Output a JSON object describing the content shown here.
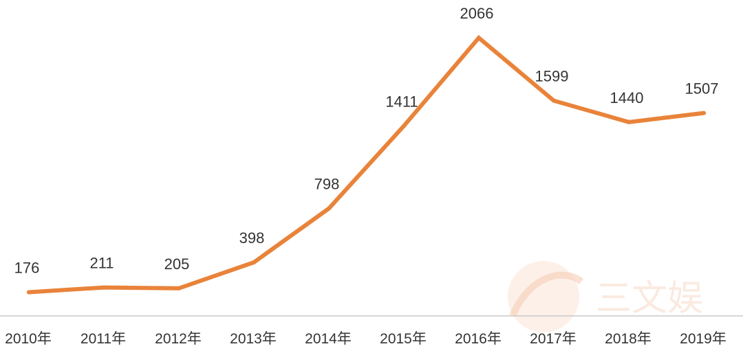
{
  "chart_data": {
    "type": "line",
    "categories": [
      "2010年",
      "2011年",
      "2012年",
      "2013年",
      "2014年",
      "2015年",
      "2016年",
      "2017年",
      "2018年",
      "2019年"
    ],
    "series": [
      {
        "values": [
          176,
          211,
          205,
          398,
          798,
          1411,
          2066,
          1599,
          1440,
          1507
        ]
      }
    ],
    "data_labels": [
      "176",
      "211",
      "205",
      "398",
      "798",
      "1411",
      "2066",
      "1599",
      "1440",
      "1507"
    ],
    "ylim": [
      0,
      2400
    ],
    "grid": false,
    "legend": "none",
    "line_color": "#e9833a",
    "axis_color": "#c8c8c8"
  },
  "watermark": {
    "text": "三文娱",
    "color": "#f3c9b2"
  }
}
